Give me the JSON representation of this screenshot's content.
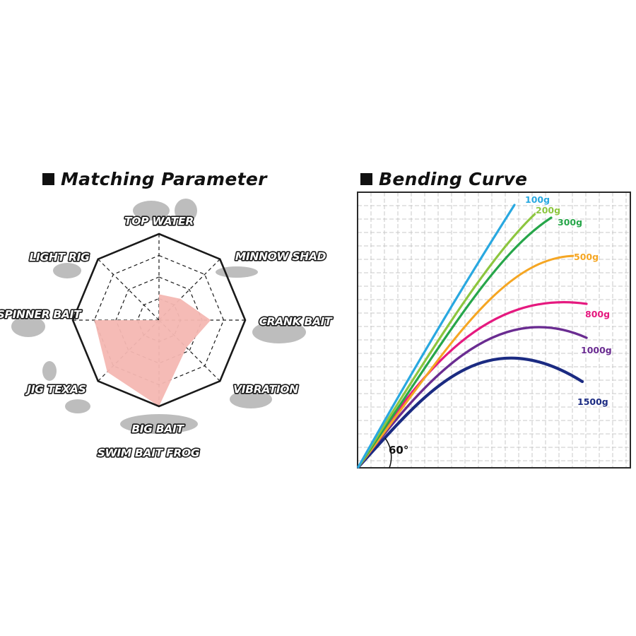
{
  "left_title": "Matching Parameter",
  "right_title": "Bending Curve",
  "chart_data": [
    {
      "type": "radar",
      "title": "Matching Parameter",
      "axes": [
        "TOP WATER",
        "MINNOW SHAD",
        "CRANK BAIT",
        "VIBRATION",
        "BIG BAIT",
        "JIG TEXAS",
        "SPINNER BAIT",
        "LIGHT RIG"
      ],
      "extra_labels": [
        "SWIM BAIT FROG"
      ],
      "levels": 4,
      "values": [
        0.3,
        0.35,
        0.6,
        0.45,
        1.0,
        0.85,
        0.75,
        0.0
      ],
      "fill_color": "#f4b7b2",
      "grid": true
    },
    {
      "type": "line",
      "title": "Bending Curve",
      "grid": true,
      "angle_label": "60°",
      "series": [
        {
          "name": "100g",
          "color": "#29a8e0"
        },
        {
          "name": "200g",
          "color": "#8dc63f"
        },
        {
          "name": "300g",
          "color": "#27a64a"
        },
        {
          "name": "500g",
          "color": "#f5a623"
        },
        {
          "name": "800g",
          "color": "#e5197f"
        },
        {
          "name": "1000g",
          "color": "#6a2c91"
        },
        {
          "name": "1500g",
          "color": "#1b2b82"
        }
      ]
    }
  ]
}
